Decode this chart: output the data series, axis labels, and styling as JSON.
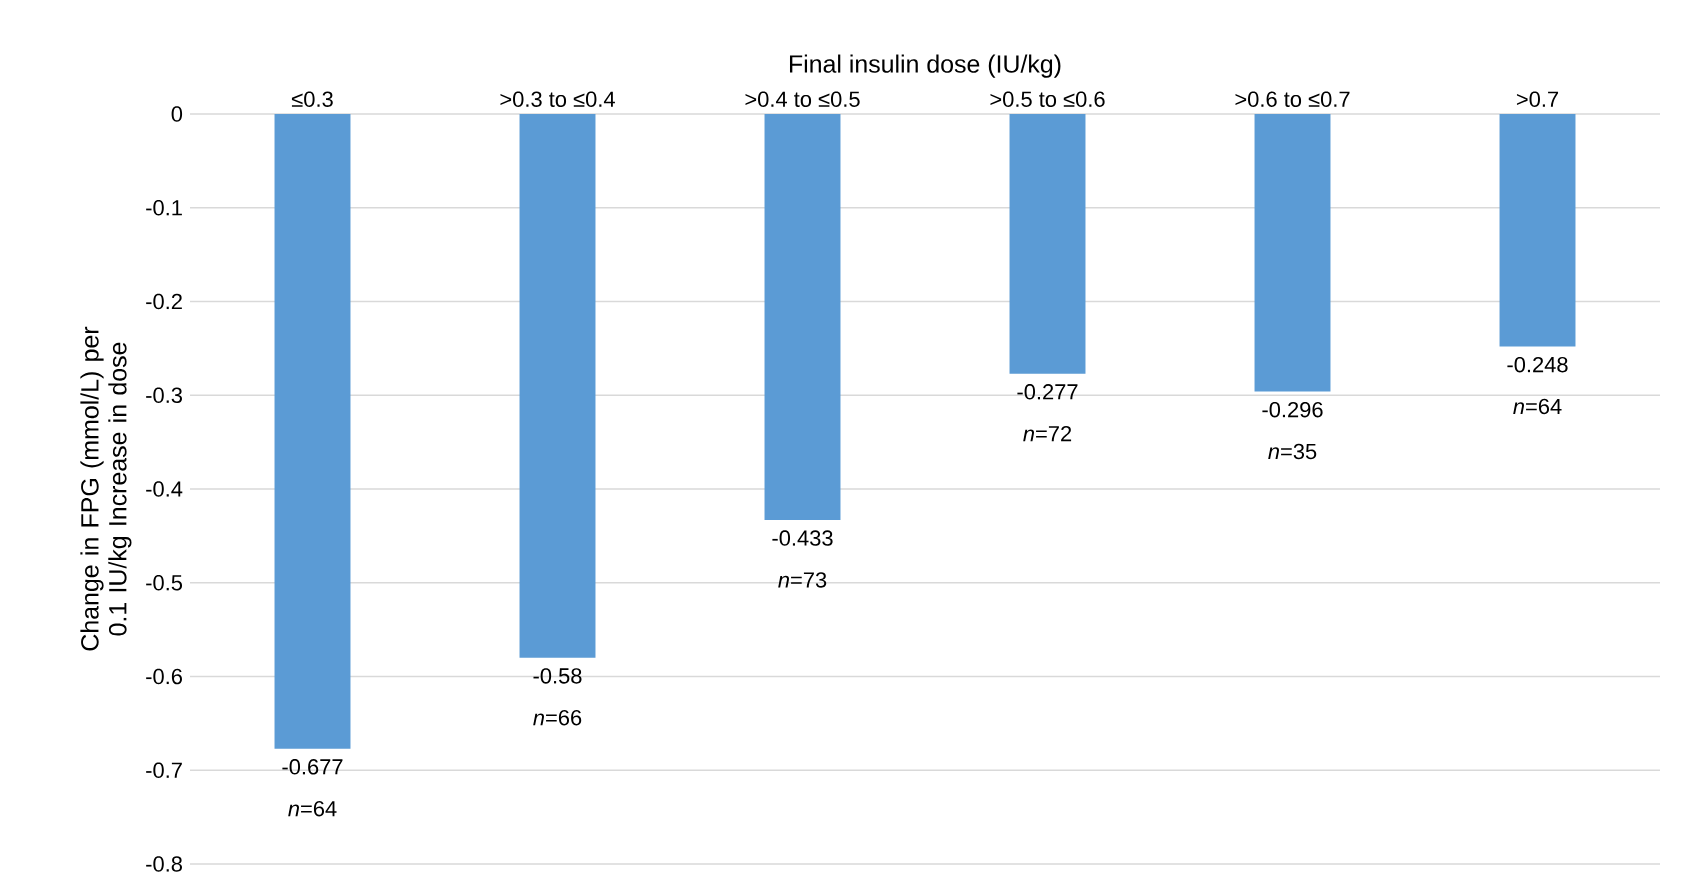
{
  "chart_data": {
    "type": "bar",
    "xlabel": "Final insulin dose (IU/kg)",
    "ylabel": "Change in FPG (mmol/L) per 0.1 IU/kg Increase in dose",
    "categories": [
      "≤0.3",
      ">0.3 to ≤0.4",
      ">0.4 to ≤0.5",
      ">0.5 to ≤0.6",
      ">0.6 to ≤0.7",
      ">0.7"
    ],
    "values": [
      -0.677,
      -0.58,
      -0.433,
      -0.277,
      -0.296,
      -0.248
    ],
    "color": "#5b9bd5",
    "ylim": [
      -0.8,
      0
    ],
    "yticks": [
      -0.8,
      -0.7,
      -0.6,
      -0.5,
      -0.4,
      -0.3,
      -0.2,
      -0.1,
      0
    ],
    "grid": "y",
    "data_labels": true,
    "annotations": [
      {
        "text": "*n*=64",
        "x": "≤0.3",
        "y": -0.677
      },
      {
        "text": "*n*=66",
        "x": ">0.3 to ≤0.4",
        "y": -0.58
      },
      {
        "text": "*n*=73",
        "x": ">0.4 to ≤0.5",
        "y": -0.433
      },
      {
        "text": "*n*=72",
        "x": ">0.5 to ≤0.6",
        "y": -0.277
      },
      {
        "text": "*n*=35",
        "x": ">0.6 to ≤0.7",
        "y": -0.296
      },
      {
        "text": "*n*=64",
        "x": ">0.7",
        "y": -0.248
      }
    ]
  }
}
